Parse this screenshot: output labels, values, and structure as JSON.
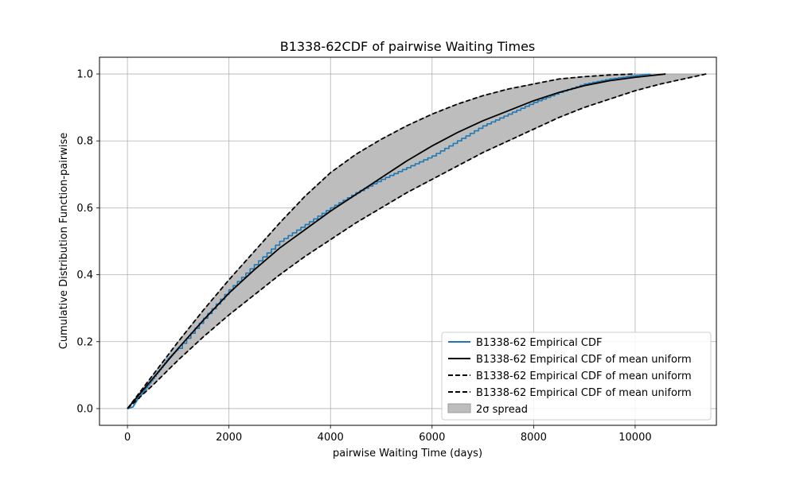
{
  "chart_data": {
    "type": "line",
    "title": "B1338-62CDF of pairwise Waiting Times",
    "xlabel": "pairwise Waiting Time (days)",
    "ylabel": "Cumulative Distribution Function-pairwise",
    "xlim": [
      -550,
      11600
    ],
    "ylim": [
      -0.05,
      1.05
    ],
    "xticks": [
      0,
      2000,
      4000,
      6000,
      8000,
      10000
    ],
    "yticks": [
      0.0,
      0.2,
      0.4,
      0.6,
      0.8,
      1.0
    ],
    "xtick_labels": [
      "0",
      "2000",
      "4000",
      "6000",
      "8000",
      "10000"
    ],
    "ytick_labels": [
      "0.0",
      "0.2",
      "0.4",
      "0.6",
      "0.8",
      "1.0"
    ],
    "grid": true,
    "legend_position": "lower right",
    "series": [
      {
        "name": "B1338-62 Empirical CDF",
        "color": "#1f77b4",
        "style": "step",
        "x": [
          0,
          100,
          200,
          400,
          600,
          800,
          1000,
          1500,
          2000,
          2500,
          3000,
          3500,
          4000,
          4500,
          5000,
          5500,
          6000,
          6500,
          7000,
          7500,
          8000,
          8500,
          9000,
          9500,
          10000,
          10300
        ],
        "y": [
          0.0,
          0.005,
          0.03,
          0.07,
          0.11,
          0.15,
          0.18,
          0.27,
          0.355,
          0.43,
          0.5,
          0.55,
          0.6,
          0.645,
          0.685,
          0.72,
          0.755,
          0.8,
          0.845,
          0.88,
          0.915,
          0.945,
          0.97,
          0.985,
          0.995,
          1.0
        ]
      },
      {
        "name": "B1338-62 Empirical CDF of mean uniform",
        "color": "#000000",
        "style": "solid",
        "x": [
          0,
          500,
          1000,
          1500,
          2000,
          2500,
          3000,
          3500,
          4000,
          4500,
          5000,
          5500,
          6000,
          6500,
          7000,
          7500,
          8000,
          8500,
          9000,
          9500,
          10000,
          10600
        ],
        "y": [
          0.0,
          0.09,
          0.18,
          0.265,
          0.345,
          0.415,
          0.48,
          0.535,
          0.59,
          0.64,
          0.69,
          0.74,
          0.785,
          0.825,
          0.86,
          0.89,
          0.92,
          0.945,
          0.965,
          0.98,
          0.99,
          1.0
        ]
      },
      {
        "name": "B1338-62 Empirical CDF of mean uniform",
        "color": "#000000",
        "style": "dashed",
        "x": [
          0,
          500,
          1000,
          1500,
          2000,
          2500,
          3000,
          3500,
          4000,
          4500,
          5000,
          5500,
          6000,
          6500,
          7000,
          7500,
          8000,
          8500,
          9000,
          9500,
          10000,
          10500,
          11400
        ],
        "y": [
          0.0,
          0.07,
          0.145,
          0.215,
          0.28,
          0.34,
          0.4,
          0.455,
          0.505,
          0.555,
          0.6,
          0.645,
          0.685,
          0.725,
          0.765,
          0.8,
          0.835,
          0.87,
          0.9,
          0.925,
          0.95,
          0.97,
          1.0
        ]
      },
      {
        "name": "B1338-62 Empirical CDF of mean uniform",
        "color": "#000000",
        "style": "dashed",
        "x": [
          0,
          500,
          1000,
          1500,
          2000,
          2500,
          3000,
          3500,
          4000,
          4500,
          5000,
          5500,
          6000,
          6500,
          7000,
          7500,
          8000,
          8500,
          9000,
          9500,
          10000
        ],
        "y": [
          0.0,
          0.1,
          0.2,
          0.295,
          0.385,
          0.47,
          0.555,
          0.635,
          0.705,
          0.76,
          0.805,
          0.845,
          0.88,
          0.91,
          0.935,
          0.955,
          0.97,
          0.985,
          0.992,
          0.997,
          1.0
        ]
      }
    ],
    "band": {
      "name": "2σ spread",
      "color": "#bdbdbd",
      "edgecolor": "#9a9a9a"
    }
  }
}
